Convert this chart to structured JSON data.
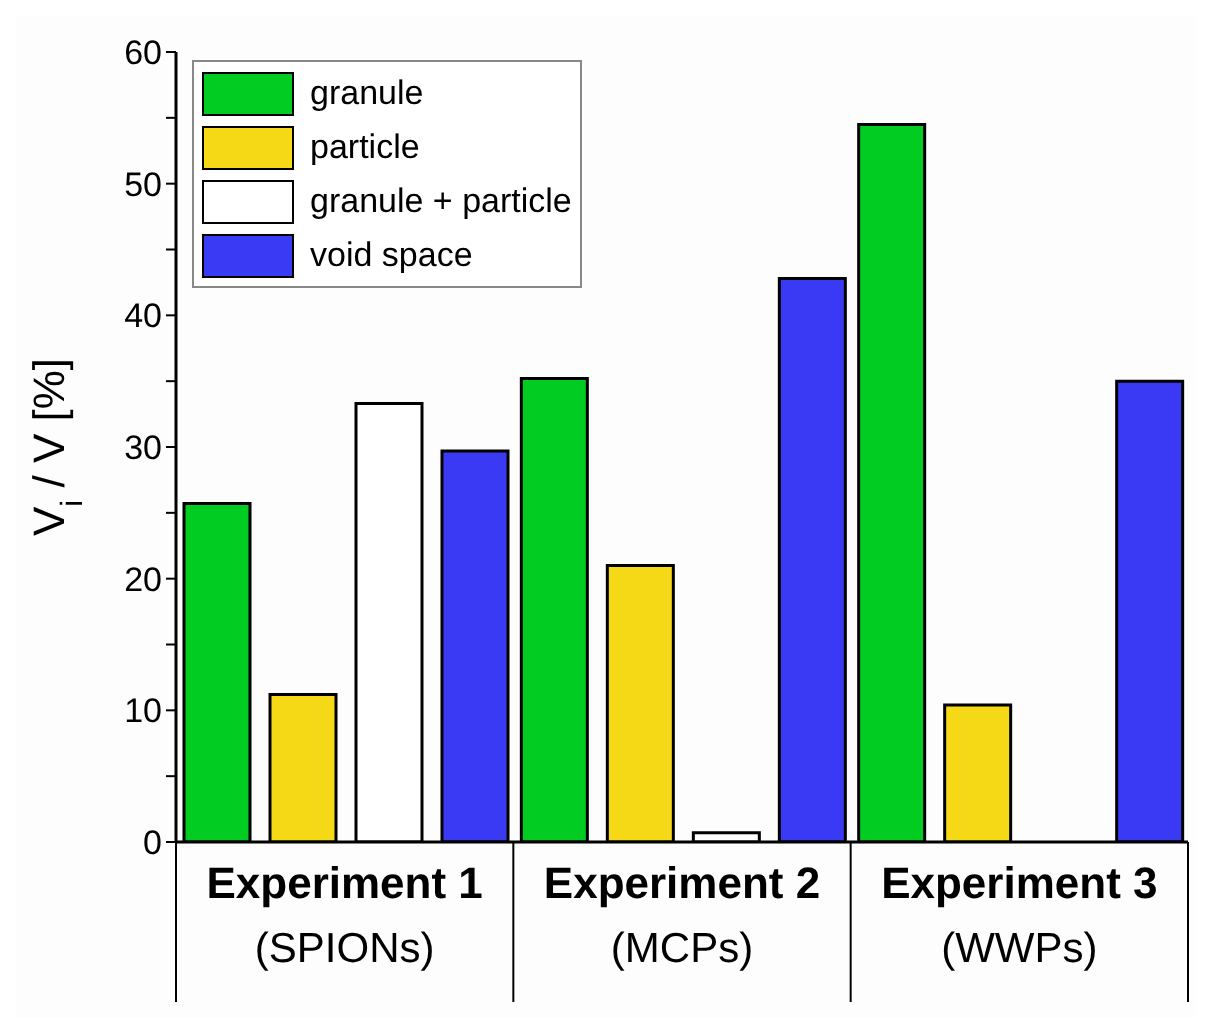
{
  "chart_data": {
    "type": "bar",
    "ylabel": "V$_{i}$ / V [%]",
    "categories": [
      "Experiment 1\n(SPIONs)",
      "Experiment 2\n(MCPs)",
      "Experiment 3\n(WWPs)"
    ],
    "series": [
      {
        "name": "granule",
        "color": "#00cc22",
        "values": [
          25.7,
          35.2,
          54.5
        ]
      },
      {
        "name": "particle",
        "color": "#f5d816",
        "values": [
          11.2,
          21.0,
          10.4
        ]
      },
      {
        "name": "granule + particle",
        "color": "#ffffff",
        "values": [
          33.3,
          0.7,
          null
        ]
      },
      {
        "name": "void space",
        "color": "#3a3af5",
        "values": [
          29.7,
          42.8,
          35.0
        ]
      }
    ],
    "ylim": [
      0,
      60
    ],
    "yticks": [
      0,
      {
        "value": 5,
        "label": null
      },
      10,
      {
        "value": 15,
        "label": null
      },
      20,
      {
        "value": 25,
        "label": null
      },
      30,
      {
        "value": 35,
        "label": null
      },
      40,
      {
        "value": 45,
        "label": null
      },
      50,
      {
        "value": 55,
        "label": null
      },
      60
    ],
    "grid": false,
    "legend": "top left"
  }
}
